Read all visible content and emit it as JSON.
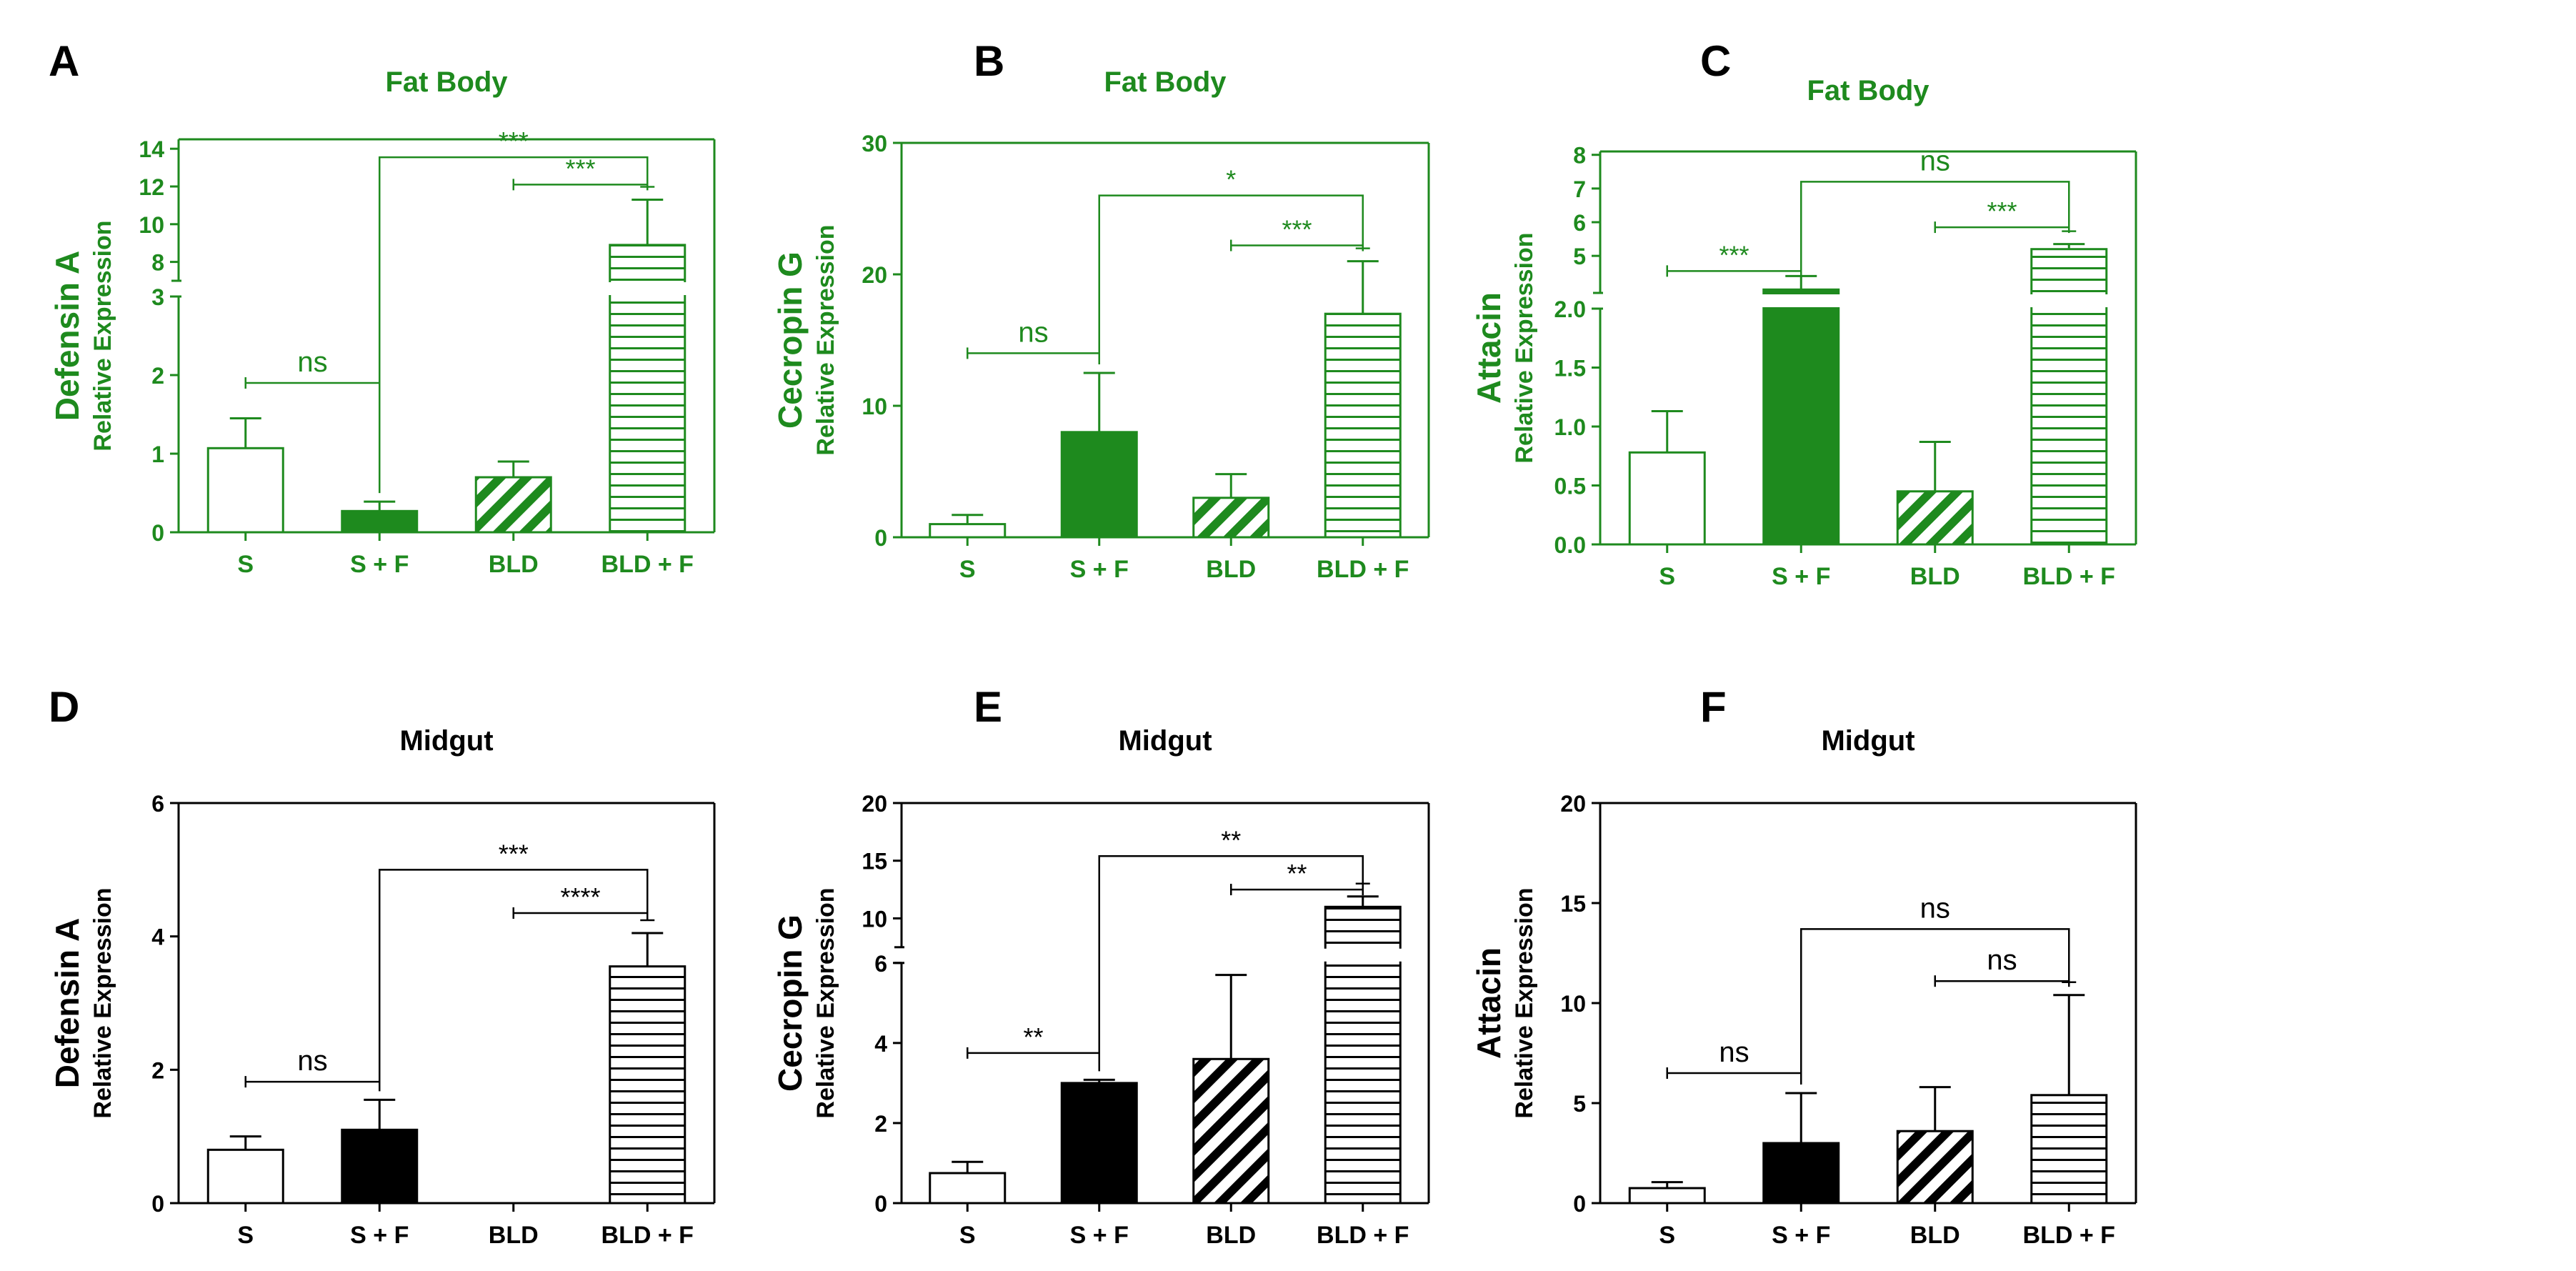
{
  "colors": {
    "green": "#1e8a1e",
    "black": "#000000",
    "white": "#ffffff"
  },
  "chart_data": [
    {
      "panel": "A",
      "title": "Fat Body",
      "tissue": "fat-body",
      "color": "#1e8a1e",
      "type": "bar",
      "gene": "Defensin A",
      "ylabel": "Relative Expression",
      "categories": [
        "S",
        "S + F",
        "BLD",
        "BLD + F"
      ],
      "values": [
        1.07,
        0.27,
        0.7,
        8.9
      ],
      "errors": [
        0.38,
        0.12,
        0.2,
        2.4
      ],
      "patterns": [
        "open",
        "solid",
        "diag",
        "horiz"
      ],
      "axis_break": true,
      "lower_ticks": [
        "0",
        "1",
        "2",
        "3"
      ],
      "lower_range": [
        0,
        3
      ],
      "upper_ticks": [
        "8",
        "10",
        "12",
        "14"
      ],
      "upper_range": [
        7,
        14.5
      ],
      "brackets": [
        {
          "from": 0,
          "to": 1,
          "label": "ns",
          "value": 1.9,
          "style": "thin"
        },
        {
          "from": 2,
          "to": 3,
          "label": "***",
          "value": 12.1,
          "style": "thin"
        },
        {
          "from": 1,
          "to": 3,
          "label": "***",
          "value": 13.55,
          "style": "open"
        }
      ]
    },
    {
      "panel": "B",
      "title": "Fat Body",
      "tissue": "fat-body",
      "color": "#1e8a1e",
      "type": "bar",
      "gene": "Cecropin G",
      "ylabel": "Relative Expression",
      "categories": [
        "S",
        "S + F",
        "BLD",
        "BLD + F"
      ],
      "values": [
        1.0,
        8.0,
        3.0,
        17.0
      ],
      "errors": [
        0.7,
        4.5,
        1.8,
        4.0
      ],
      "patterns": [
        "open",
        "solid",
        "diag",
        "horiz"
      ],
      "axis_break": false,
      "ticks": [
        "0",
        "10",
        "20",
        "30"
      ],
      "ylim": [
        0,
        30
      ],
      "brackets": [
        {
          "from": 0,
          "to": 1,
          "label": "ns",
          "value": 14.0,
          "style": "thin"
        },
        {
          "from": 2,
          "to": 3,
          "label": "***",
          "value": 22.2,
          "style": "thin"
        },
        {
          "from": 1,
          "to": 3,
          "label": "*",
          "value": 26.0,
          "style": "open"
        }
      ]
    },
    {
      "panel": "C",
      "title": "Fat Body",
      "tissue": "fat-body",
      "color": "#1e8a1e",
      "type": "bar",
      "gene": "Attacin",
      "ylabel": "Relative Expression",
      "categories": [
        "S",
        "S + F",
        "BLD",
        "BLD + F"
      ],
      "values": [
        0.78,
        4.0,
        0.45,
        5.2
      ],
      "errors": [
        0.35,
        0.4,
        0.42,
        0.15
      ],
      "patterns": [
        "open",
        "solid",
        "diag",
        "horiz"
      ],
      "axis_break": true,
      "lower_ticks": [
        "0.0",
        "0.5",
        "1.0",
        "1.5",
        "2.0"
      ],
      "lower_range": [
        0,
        2
      ],
      "upper_ticks": [
        "5",
        "6",
        "7",
        "8"
      ],
      "upper_range": [
        3.9,
        8.1
      ],
      "brackets": [
        {
          "from": 0,
          "to": 1,
          "label": "***",
          "value": 4.55,
          "style": "thin"
        },
        {
          "from": 2,
          "to": 3,
          "label": "***",
          "value": 5.85,
          "style": "thin"
        },
        {
          "from": 1,
          "to": 3,
          "label": "ns",
          "value": 7.2,
          "style": "open"
        }
      ]
    },
    {
      "panel": "D",
      "title": "Midgut",
      "tissue": "midgut",
      "color": "#000000",
      "type": "bar",
      "gene": "Defensin A",
      "ylabel": "Relative Expression",
      "categories": [
        "S",
        "S + F",
        "BLD",
        "BLD + F"
      ],
      "values": [
        0.8,
        1.1,
        0.0,
        3.55
      ],
      "errors": [
        0.2,
        0.45,
        0.0,
        0.5
      ],
      "patterns": [
        "open",
        "solid",
        "diag",
        "horiz"
      ],
      "axis_break": false,
      "ticks": [
        "0",
        "2",
        "4",
        "6"
      ],
      "ylim": [
        0,
        6
      ],
      "brackets": [
        {
          "from": 0,
          "to": 1,
          "label": "ns",
          "value": 1.82,
          "style": "thin"
        },
        {
          "from": 2,
          "to": 3,
          "label": "****",
          "value": 4.35,
          "style": "thin"
        },
        {
          "from": 1,
          "to": 3,
          "label": "***",
          "value": 5.0,
          "style": "open"
        }
      ]
    },
    {
      "panel": "E",
      "title": "Midgut",
      "tissue": "midgut",
      "color": "#000000",
      "type": "bar",
      "gene": "Cecropin G",
      "ylabel": "Relative Expression",
      "categories": [
        "S",
        "S + F",
        "BLD",
        "BLD + F"
      ],
      "values": [
        0.75,
        3.0,
        3.6,
        11.0
      ],
      "errors": [
        0.28,
        0.08,
        2.1,
        0.9
      ],
      "patterns": [
        "open",
        "solid",
        "diag",
        "horiz"
      ],
      "axis_break": true,
      "lower_ticks": [
        "0",
        "2",
        "4",
        "6"
      ],
      "lower_range": [
        0,
        6
      ],
      "upper_ticks": [
        "10",
        "15",
        "20"
      ],
      "upper_range": [
        7.5,
        20
      ],
      "brackets": [
        {
          "from": 0,
          "to": 1,
          "label": "**",
          "value": 3.75,
          "style": "thin"
        },
        {
          "from": 2,
          "to": 3,
          "label": "**",
          "value": 12.5,
          "style": "thin"
        },
        {
          "from": 1,
          "to": 3,
          "label": "**",
          "value": 15.4,
          "style": "open"
        }
      ]
    },
    {
      "panel": "F",
      "title": "Midgut",
      "tissue": "midgut",
      "color": "#000000",
      "type": "bar",
      "gene": "Attacin",
      "ylabel": "Relative Expression",
      "categories": [
        "S",
        "S + F",
        "BLD",
        "BLD + F"
      ],
      "values": [
        0.75,
        3.0,
        3.6,
        5.4
      ],
      "errors": [
        0.3,
        2.5,
        2.2,
        5.0
      ],
      "patterns": [
        "open",
        "solid",
        "diag",
        "horiz"
      ],
      "axis_break": false,
      "ticks": [
        "0",
        "5",
        "10",
        "15",
        "20"
      ],
      "ylim": [
        0,
        20
      ],
      "brackets": [
        {
          "from": 0,
          "to": 1,
          "label": "ns",
          "value": 6.5,
          "style": "thin"
        },
        {
          "from": 2,
          "to": 3,
          "label": "ns",
          "value": 11.1,
          "style": "thin"
        },
        {
          "from": 1,
          "to": 3,
          "label": "ns",
          "value": 13.7,
          "style": "open"
        }
      ]
    }
  ]
}
